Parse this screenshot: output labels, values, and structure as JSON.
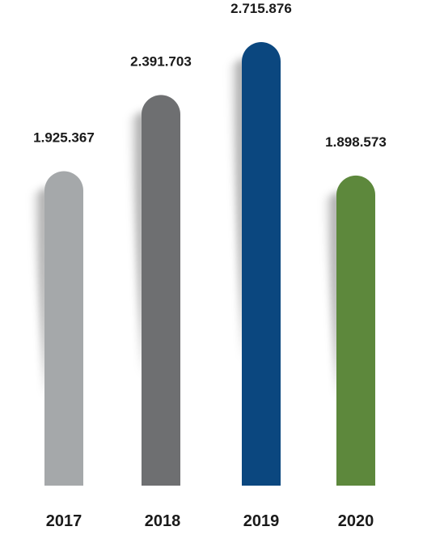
{
  "chart_data": {
    "type": "bar",
    "categories": [
      "2017",
      "2018",
      "2019",
      "2020"
    ],
    "values": [
      1925367,
      2391703,
      2715876,
      1898573
    ],
    "value_labels": [
      "1.925.367",
      "2.391.703",
      "2.715.876",
      "1.898.573"
    ],
    "colors": [
      "#a5a8aa",
      "#6e6f71",
      "#0b477f",
      "#5d883c"
    ],
    "title": "",
    "xlabel": "",
    "ylabel": "",
    "ylim": [
      0,
      2715876
    ],
    "grid": false,
    "legend": "none"
  }
}
